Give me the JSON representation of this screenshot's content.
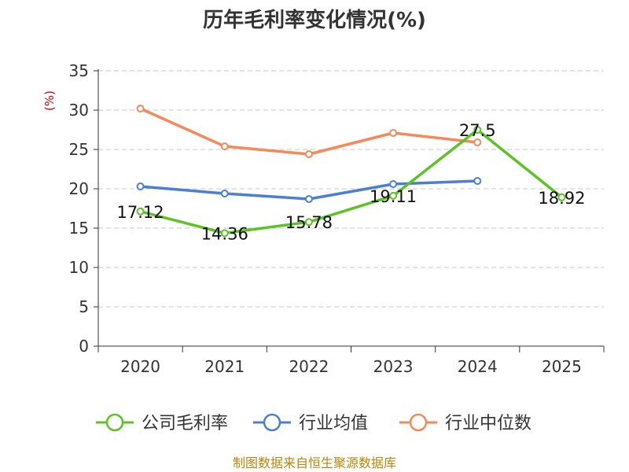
{
  "chart_data": {
    "type": "line",
    "title": "历年毛利率变化情况(%)",
    "ylabel": "(%)",
    "xlabel": "",
    "ylim": [
      0,
      35
    ],
    "yticks": [
      0,
      5,
      10,
      15,
      20,
      25,
      30,
      35
    ],
    "categories": [
      "2020",
      "2021",
      "2022",
      "2023",
      "2024",
      "2025"
    ],
    "grid": true,
    "legend_position": "bottom",
    "series": [
      {
        "name": "公司毛利率",
        "color": "#5bc424",
        "values": [
          17.12,
          14.36,
          15.78,
          19.11,
          27.5,
          18.92
        ],
        "labels": [
          "17.12",
          "14.36",
          "15.78",
          "19.11",
          "27.5",
          "18.92"
        ]
      },
      {
        "name": "行业均值",
        "color": "#4a7fd4",
        "values": [
          20.3,
          19.4,
          18.7,
          20.6,
          21.0,
          null
        ]
      },
      {
        "name": "行业中位数",
        "color": "#f5895a",
        "values": [
          30.2,
          25.4,
          24.4,
          27.1,
          25.9,
          null
        ]
      }
    ]
  },
  "footer": {
    "source": "制图数据来自恒生聚源数据库"
  }
}
